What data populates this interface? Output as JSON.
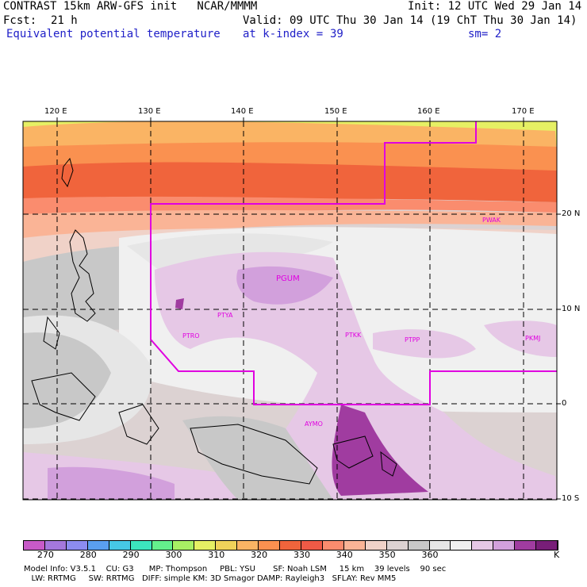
{
  "header": {
    "line1_left": "CONTRAST 15km ARW-GFS init   NCAR/MMMM",
    "line1_right": "Init: 12 UTC Wed 29 Jan 14",
    "fcst_label": "Fcst:",
    "fcst_value": "21 h",
    "valid": "Valid: 09 UTC Thu 30 Jan 14 (19 ChT Thu 30 Jan 14)",
    "field": "Equivalent potential temperature",
    "level_label": "at k-index =",
    "level_value": "39",
    "smooth": "sm= 2"
  },
  "axes": {
    "lon_labels": [
      "120 E",
      "130 E",
      "140 E",
      "150 E",
      "160 E",
      "170 E"
    ],
    "lat_labels": [
      "20 N",
      "10 N",
      "0",
      "10 S"
    ]
  },
  "stations": [
    "PWAK",
    "PGUM",
    "PTYA",
    "PTRO",
    "PTKK",
    "PTPP",
    "PKMJ",
    "AYMO"
  ],
  "colorbar": {
    "colors": [
      "#c85ac8",
      "#a478dc",
      "#8c8cf0",
      "#5a9ff0",
      "#46c8e6",
      "#3ce6be",
      "#64f08c",
      "#a8f064",
      "#e6f064",
      "#f0d25a",
      "#fab464",
      "#fa9150",
      "#f0643c",
      "#f05a46",
      "#fa8c6e",
      "#fab496",
      "#f0d2c8",
      "#dcd2d2",
      "#c8c8c8",
      "#e6e6e6",
      "#f0f0f0",
      "#e6c8e6",
      "#d2a0dc",
      "#a03ca0",
      "#781e78"
    ],
    "ticks": [
      "270",
      "280",
      "290",
      "300",
      "310",
      "320",
      "330",
      "340",
      "350",
      "360"
    ],
    "unit": "K"
  },
  "footer": {
    "line1": "Model Info: V3.5.1    CU: G3      MP: Thompson     PBL: YSU       SF: Noah LSM     15 km    39 levels    90 sec",
    "line2": "   LW: RRTMG     SW: RRTMG   DIFF: simple KM: 3D Smagor DAMP: Rayleigh3   SFLAY: Rev MM5"
  }
}
